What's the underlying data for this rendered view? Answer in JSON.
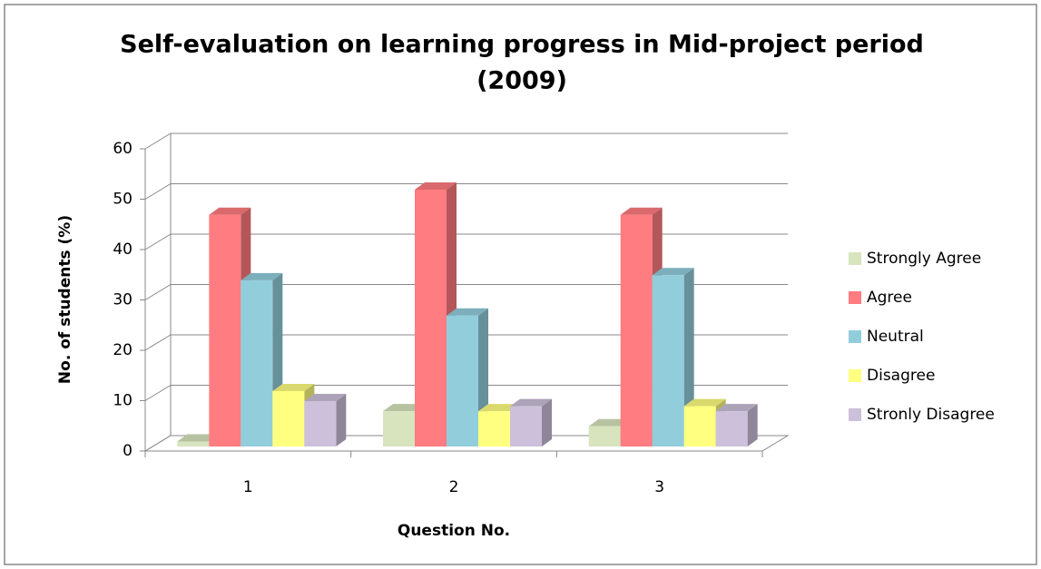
{
  "chart_data": {
    "type": "bar3d",
    "title": [
      "Self-evaluation on learning progress in Mid-project period",
      "(2009)"
    ],
    "xlabel": "Question No.",
    "ylabel": "No. of students (%)",
    "categories": [
      "1",
      "2",
      "3"
    ],
    "series": [
      {
        "name": "Strongly Agree",
        "color": "#d7e4bd",
        "values": [
          1,
          7,
          4
        ]
      },
      {
        "name": "Agree",
        "color": "#ff7c80",
        "values": [
          46,
          51,
          46
        ]
      },
      {
        "name": "Neutral",
        "color": "#92cddc",
        "values": [
          33,
          26,
          34
        ]
      },
      {
        "name": "Disagree",
        "color": "#ffff80",
        "values": [
          11,
          7,
          8
        ]
      },
      {
        "name": "Stronly Disagree",
        "color": "#ccc0da",
        "values": [
          9,
          8,
          7
        ]
      }
    ],
    "ylim": [
      0,
      60
    ],
    "yticks": [
      0,
      10,
      20,
      30,
      40,
      50,
      60
    ],
    "grid": true,
    "legend": "right"
  }
}
